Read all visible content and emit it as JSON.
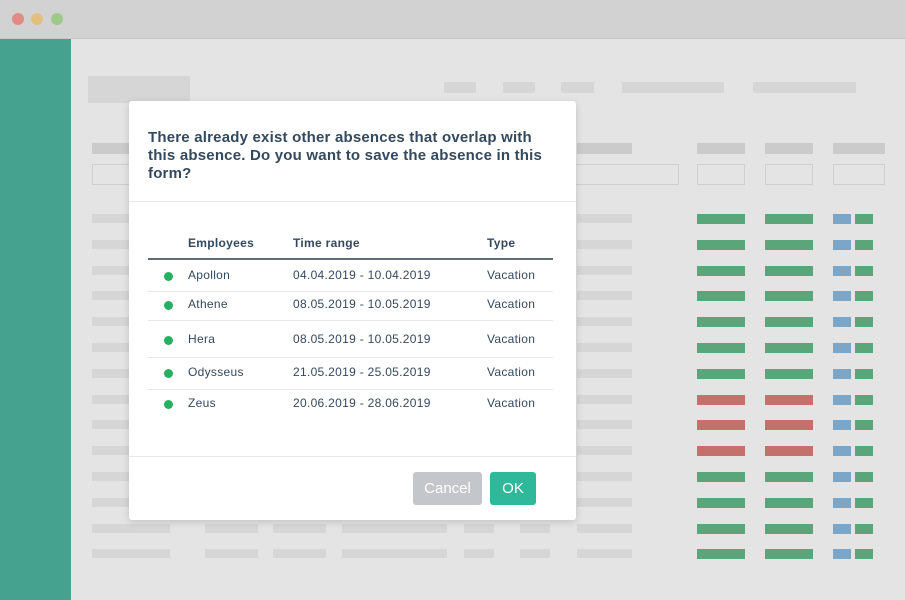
{
  "dialog": {
    "message": "There already exist other absences that overlap with this absence. Do you want to save the absence in this form?",
    "table": {
      "headers": [
        "Employees",
        "Time range",
        "Type"
      ],
      "rows": [
        [
          "Apollon",
          "04.04.2019 - 10.04.2019",
          "Vacation"
        ],
        [
          "Athene",
          "08.05.2019 - 10.05.2019",
          "Vacation"
        ],
        [
          "Hera",
          "08.05.2019 - 10.05.2019",
          "Vacation"
        ],
        [
          "Odysseus",
          "21.05.2019 - 25.05.2019",
          "Vacation"
        ],
        [
          "Zeus",
          "20.06.2019 - 28.06.2019",
          "Vacation"
        ]
      ]
    },
    "buttons": {
      "cancel": "Cancel",
      "ok": "OK"
    }
  }
}
